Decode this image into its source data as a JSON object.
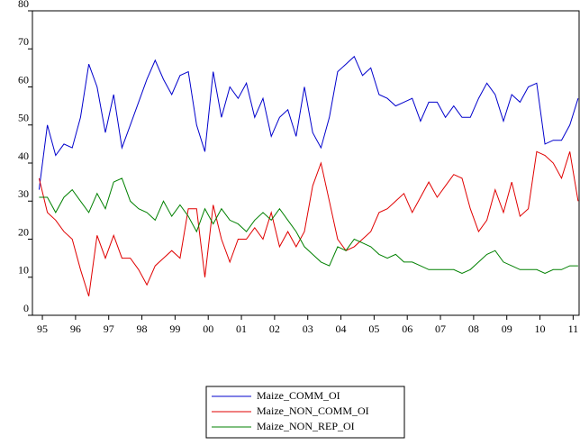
{
  "chart_data": {
    "type": "line",
    "x": [
      1995.4,
      1995.65,
      1995.9,
      1996.15,
      1996.4,
      1996.65,
      1996.9,
      1997.15,
      1997.4,
      1997.65,
      1997.9,
      1998.15,
      1998.4,
      1998.65,
      1998.9,
      1999.15,
      1999.4,
      1999.65,
      1999.9,
      2000.15,
      2000.4,
      2000.65,
      2000.9,
      2001.15,
      2001.4,
      2001.65,
      2001.9,
      2002.15,
      2002.4,
      2002.65,
      2002.9,
      2003.15,
      2003.4,
      2003.65,
      2003.9,
      2004.15,
      2004.4,
      2004.65,
      2004.9,
      2005.15,
      2005.4,
      2005.65,
      2005.9,
      2006.15,
      2006.4,
      2006.65,
      2006.9,
      2007.15,
      2007.4,
      2007.65,
      2007.9,
      2008.15,
      2008.4,
      2008.65,
      2008.9,
      2009.15,
      2009.4,
      2009.65,
      2009.9,
      2010.15,
      2010.4,
      2010.65,
      2010.9,
      2011.15,
      2011.4,
      2011.65
    ],
    "series": [
      {
        "name": "Maize_COMM_OI",
        "color": "#0000cc",
        "values": [
          33,
          50,
          42,
          45,
          44,
          52,
          66,
          60,
          48,
          58,
          44,
          50,
          56,
          62,
          67,
          62,
          58,
          63,
          64,
          50,
          43,
          64,
          52,
          60,
          57,
          61,
          52,
          57,
          47,
          52,
          54,
          47,
          60,
          48,
          44,
          52,
          64,
          66,
          68,
          63,
          65,
          58,
          57,
          55,
          56,
          57,
          51,
          56,
          56,
          52,
          55,
          52,
          52,
          57,
          61,
          58,
          51,
          58,
          56,
          60,
          61,
          45,
          46,
          46,
          50,
          57
        ]
      },
      {
        "name": "Maize_NON_COMM_OI",
        "color": "#e00000",
        "values": [
          36,
          27,
          25,
          22,
          20,
          12,
          5,
          21,
          15,
          21,
          15,
          15,
          12,
          8,
          13,
          15,
          17,
          15,
          28,
          28,
          10,
          29,
          20,
          14,
          20,
          20,
          23,
          20,
          27,
          18,
          22,
          18,
          22,
          34,
          40,
          30,
          20,
          17,
          18,
          20,
          22,
          27,
          28,
          30,
          32,
          27,
          31,
          35,
          31,
          34,
          37,
          36,
          28,
          22,
          25,
          33,
          27,
          35,
          26,
          28,
          43,
          42,
          40,
          36,
          43,
          30
        ]
      },
      {
        "name": "Maize_NON_REP_OI",
        "color": "#008000",
        "values": [
          31,
          31,
          27,
          31,
          33,
          30,
          27,
          32,
          28,
          35,
          36,
          30,
          28,
          27,
          25,
          30,
          26,
          29,
          26,
          22,
          28,
          24,
          28,
          25,
          24,
          22,
          25,
          27,
          25,
          28,
          25,
          22,
          18,
          16,
          14,
          13,
          18,
          17,
          20,
          19,
          18,
          16,
          15,
          16,
          14,
          14,
          13,
          12,
          12,
          12,
          12,
          11,
          12,
          14,
          16,
          17,
          14,
          13,
          12,
          12,
          12,
          11,
          12,
          12,
          13,
          13
        ]
      }
    ],
    "xlim": [
      1995.2,
      2011.68
    ],
    "xticks": [
      {
        "value": 1995.5,
        "label": "95"
      },
      {
        "value": 1996.5,
        "label": "96"
      },
      {
        "value": 1997.5,
        "label": "97"
      },
      {
        "value": 1998.5,
        "label": "98"
      },
      {
        "value": 1999.5,
        "label": "99"
      },
      {
        "value": 2000.5,
        "label": "00"
      },
      {
        "value": 2001.5,
        "label": "01"
      },
      {
        "value": 2002.5,
        "label": "02"
      },
      {
        "value": 2003.5,
        "label": "03"
      },
      {
        "value": 2004.5,
        "label": "04"
      },
      {
        "value": 2005.5,
        "label": "05"
      },
      {
        "value": 2006.5,
        "label": "06"
      },
      {
        "value": 2007.5,
        "label": "07"
      },
      {
        "value": 2008.5,
        "label": "08"
      },
      {
        "value": 2009.5,
        "label": "09"
      },
      {
        "value": 2010.5,
        "label": "10"
      },
      {
        "value": 2011.5,
        "label": "11"
      }
    ],
    "ylim": [
      0,
      80
    ],
    "yticks": [
      0,
      10,
      20,
      30,
      40,
      50,
      60,
      70,
      80
    ],
    "legend": "bottom"
  }
}
